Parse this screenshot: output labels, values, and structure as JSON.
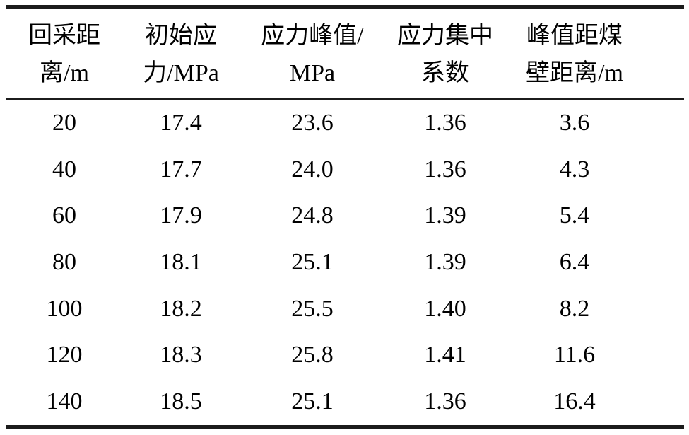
{
  "page": {
    "background_color": "#ffffff",
    "text_color": "#000000",
    "rule_color": "#1c1c1c"
  },
  "table": {
    "header": [
      {
        "line1": "回采距",
        "line2": "离/m"
      },
      {
        "line1": "初始应",
        "line2": "力/MPa"
      },
      {
        "line1": "应力峰值/",
        "line2": "MPa"
      },
      {
        "line1": "应力集中",
        "line2": "系数"
      },
      {
        "line1": "峰值距煤",
        "line2": "壁距离/m"
      }
    ],
    "rows": [
      [
        "20",
        "17.4",
        "23.6",
        "1.36",
        "3.6"
      ],
      [
        "40",
        "17.7",
        "24.0",
        "1.36",
        "4.3"
      ],
      [
        "60",
        "17.9",
        "24.8",
        "1.39",
        "5.4"
      ],
      [
        "80",
        "18.1",
        "25.1",
        "1.39",
        "6.4"
      ],
      [
        "100",
        "18.2",
        "25.5",
        "1.40",
        "8.2"
      ],
      [
        "120",
        "18.3",
        "25.8",
        "1.41",
        "11.6"
      ],
      [
        "140",
        "18.5",
        "25.1",
        "1.36",
        "16.4"
      ]
    ]
  },
  "chart_data": {
    "type": "table",
    "columns": [
      "回采距离/m",
      "初始应力/MPa",
      "应力峰值/MPa",
      "应力集中系数",
      "峰值距煤壁距离/m"
    ],
    "rows": [
      [
        20,
        17.4,
        23.6,
        1.36,
        3.6
      ],
      [
        40,
        17.7,
        24.0,
        1.36,
        4.3
      ],
      [
        60,
        17.9,
        24.8,
        1.39,
        5.4
      ],
      [
        80,
        18.1,
        25.1,
        1.39,
        6.4
      ],
      [
        100,
        18.2,
        25.5,
        1.4,
        8.2
      ],
      [
        120,
        18.3,
        25.8,
        1.41,
        11.6
      ],
      [
        140,
        18.5,
        25.1,
        1.36,
        16.4
      ]
    ]
  }
}
